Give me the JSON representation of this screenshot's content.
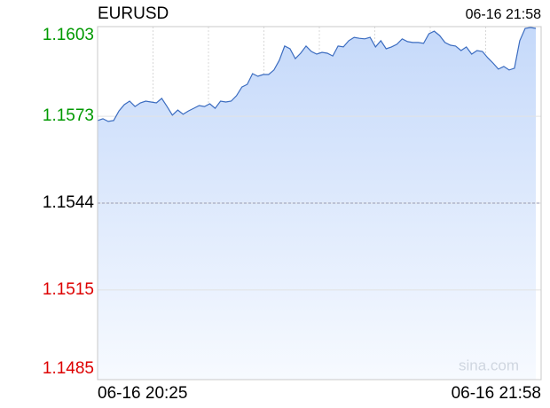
{
  "chart_data": {
    "type": "line",
    "title": "EURUSD",
    "time": "06-16 21:58",
    "watermark": "sina.com",
    "categories": [
      "06-16 20:25",
      null,
      null,
      null,
      null,
      null,
      null,
      null,
      null,
      null,
      null,
      null,
      null,
      null,
      null,
      null,
      null,
      null,
      null,
      null,
      null,
      null,
      null,
      null,
      null,
      null,
      null,
      null,
      null,
      null,
      null,
      null,
      null,
      null,
      null,
      null,
      null,
      null,
      null,
      null,
      null,
      null,
      null,
      null,
      null,
      null,
      null,
      null,
      null,
      null,
      null,
      null,
      null,
      null,
      null,
      null,
      null,
      null,
      null,
      null,
      null,
      null,
      null,
      null,
      null,
      null,
      null,
      null,
      null,
      null,
      null,
      null,
      null,
      null,
      null,
      null,
      null,
      null,
      null,
      null,
      null,
      null,
      "06-16 21:58"
    ],
    "series": [
      {
        "name": "EURUSD",
        "color": "#3b6cc0",
        "values": [
          1.15716,
          1.15722,
          1.15713,
          1.15716,
          1.15748,
          1.15769,
          1.15781,
          1.15763,
          1.15775,
          1.15781,
          1.15778,
          1.15775,
          1.1579,
          1.15763,
          1.15734,
          1.15751,
          1.15737,
          1.15748,
          1.15757,
          1.15766,
          1.15763,
          1.15772,
          1.15757,
          1.15781,
          1.15778,
          1.15781,
          1.15799,
          1.15828,
          1.15837,
          1.15873,
          1.15864,
          1.1587,
          1.1587,
          1.15885,
          1.15917,
          1.15965,
          1.15956,
          1.15923,
          1.15941,
          1.15965,
          1.15947,
          1.15938,
          1.15944,
          1.15941,
          1.15932,
          1.15965,
          1.15962,
          1.15983,
          1.15994,
          1.15991,
          1.15989,
          1.15994,
          1.15962,
          1.15983,
          1.15956,
          1.15962,
          1.15971,
          1.15989,
          1.1598,
          1.15977,
          1.15977,
          1.15974,
          1.16006,
          1.16015,
          1.16,
          1.15977,
          1.15968,
          1.15965,
          1.1595,
          1.15962,
          1.15938,
          1.1595,
          1.15947,
          1.15926,
          1.15908,
          1.15888,
          1.15897,
          1.15885,
          1.15891,
          1.15983,
          1.16024,
          1.16027,
          1.16024
        ]
      }
    ],
    "ylim": [
      1.1485,
      1.1603
    ],
    "yticks": [
      1.1603,
      1.1573,
      1.1544,
      1.1515,
      1.1485
    ],
    "ytick_colors": [
      "#009900",
      "#009900",
      "#000000",
      "#dd0000",
      "#dd0000"
    ],
    "reference": 1.1544
  }
}
